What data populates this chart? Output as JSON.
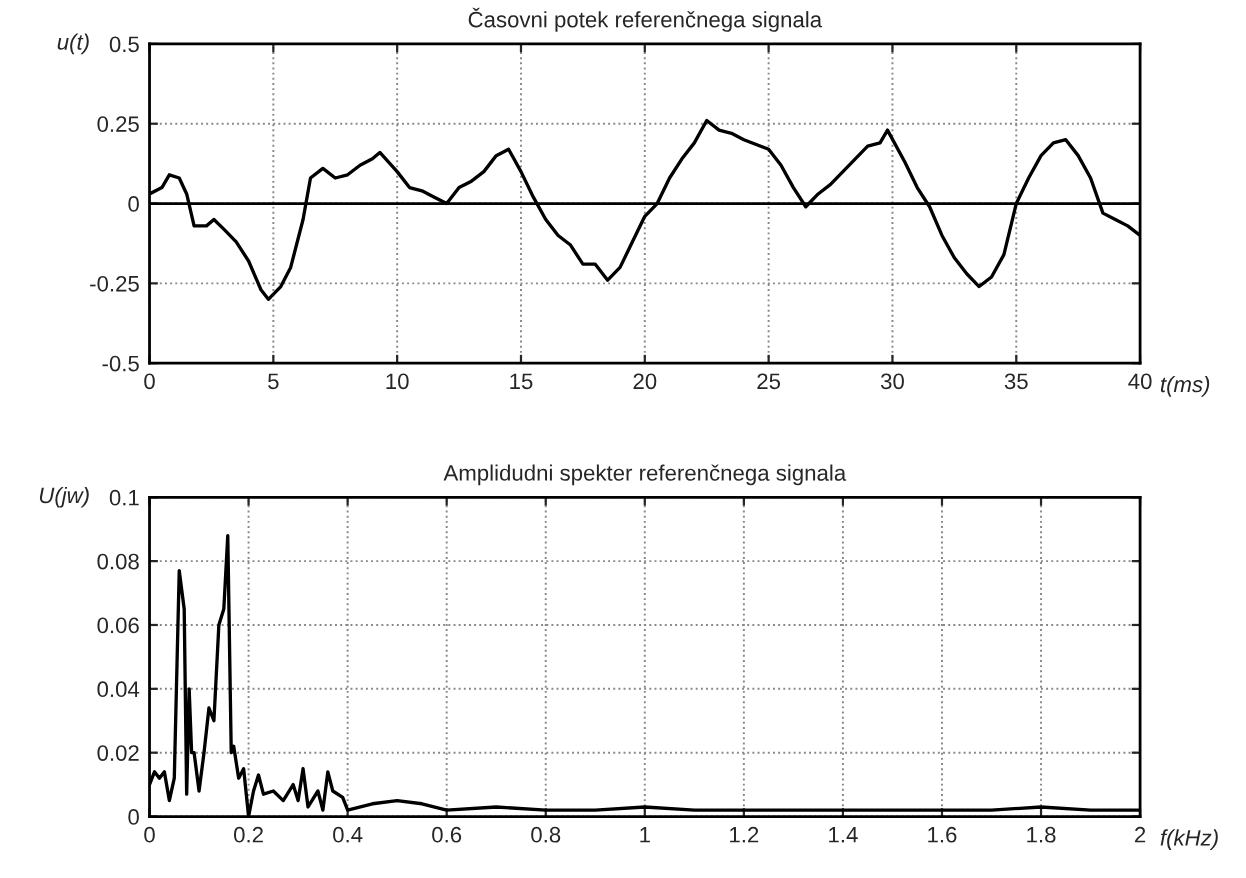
{
  "chart_data": [
    {
      "type": "line",
      "title": "Časovni potek referenčnega signala",
      "ylabel": "u(t)",
      "xlabel": "t(ms)",
      "series": [
        {
          "color": "#000000",
          "x": [
            0,
            0.5,
            0.8,
            1.2,
            1.5,
            1.8,
            2.3,
            2.6,
            3,
            3.5,
            4,
            4.5,
            4.8,
            5.3,
            5.7,
            6.2,
            6.5,
            7,
            7.5,
            8,
            8.5,
            9,
            9.3,
            10,
            10.5,
            11,
            11.5,
            12,
            12.5,
            13,
            13.5,
            14,
            14.5,
            15,
            15.5,
            16,
            16.5,
            17,
            17.5,
            18,
            18.5,
            19,
            19.5,
            20,
            20.5,
            21,
            21.5,
            22,
            22.5,
            23,
            23.5,
            24,
            25,
            25.5,
            26,
            26.5,
            27,
            27.5,
            28,
            28.5,
            29,
            29.5,
            29.8,
            30.5,
            31,
            31.5,
            32,
            32.5,
            33,
            33.5,
            34,
            34.5,
            35,
            35.5,
            36,
            36.5,
            37,
            37.5,
            38,
            38.5,
            39,
            39.5,
            40
          ],
          "values": [
            0.03,
            0.05,
            0.09,
            0.08,
            0.03,
            -0.07,
            -0.07,
            -0.05,
            -0.08,
            -0.12,
            -0.18,
            -0.27,
            -0.3,
            -0.26,
            -0.2,
            -0.05,
            0.08,
            0.11,
            0.08,
            0.09,
            0.12,
            0.14,
            0.16,
            0.1,
            0.05,
            0.04,
            0.02,
            0.0,
            0.05,
            0.07,
            0.1,
            0.15,
            0.17,
            0.1,
            0.02,
            -0.05,
            -0.1,
            -0.13,
            -0.19,
            -0.19,
            -0.24,
            -0.2,
            -0.12,
            -0.04,
            0.0,
            0.08,
            0.14,
            0.19,
            0.26,
            0.23,
            0.22,
            0.2,
            0.17,
            0.12,
            0.05,
            -0.01,
            0.03,
            0.06,
            0.1,
            0.14,
            0.18,
            0.19,
            0.23,
            0.13,
            0.05,
            -0.01,
            -0.1,
            -0.17,
            -0.22,
            -0.26,
            -0.23,
            -0.16,
            0.0,
            0.08,
            0.15,
            0.19,
            0.2,
            0.15,
            0.08,
            -0.03,
            -0.05,
            -0.07,
            -0.1
          ]
        }
      ],
      "xlim": [
        0,
        40
      ],
      "xticks": [
        0,
        5,
        10,
        15,
        20,
        25,
        30,
        35,
        40
      ],
      "ylim": [
        -0.5,
        0.5
      ],
      "yticks": [
        -0.5,
        -0.25,
        0,
        0.25,
        0.5
      ],
      "ref_lines": [
        {
          "axis": "y",
          "value": 0,
          "color": "#000000"
        }
      ],
      "grid": true
    },
    {
      "type": "line",
      "title": "Amplidudni spekter referenčnega signala",
      "ylabel": "U(jw)",
      "xlabel": "f(kHz)",
      "series": [
        {
          "color": "#000000",
          "x": [
            0,
            0.01,
            0.02,
            0.03,
            0.04,
            0.05,
            0.06,
            0.07,
            0.075,
            0.08,
            0.085,
            0.09,
            0.1,
            0.11,
            0.12,
            0.13,
            0.14,
            0.15,
            0.158,
            0.165,
            0.17,
            0.18,
            0.19,
            0.2,
            0.21,
            0.22,
            0.23,
            0.25,
            0.27,
            0.29,
            0.3,
            0.31,
            0.32,
            0.34,
            0.35,
            0.36,
            0.37,
            0.39,
            0.4,
            0.45,
            0.5,
            0.55,
            0.6,
            0.7,
            0.8,
            0.9,
            1.0,
            1.1,
            1.2,
            1.3,
            1.4,
            1.5,
            1.6,
            1.7,
            1.8,
            1.9,
            2.0
          ],
          "values": [
            0.01,
            0.014,
            0.012,
            0.014,
            0.005,
            0.012,
            0.077,
            0.065,
            0.007,
            0.04,
            0.02,
            0.02,
            0.008,
            0.02,
            0.034,
            0.03,
            0.06,
            0.065,
            0.088,
            0.02,
            0.022,
            0.012,
            0.015,
            0.0,
            0.008,
            0.013,
            0.007,
            0.008,
            0.005,
            0.01,
            0.005,
            0.015,
            0.003,
            0.008,
            0.002,
            0.014,
            0.008,
            0.006,
            0.002,
            0.004,
            0.005,
            0.004,
            0.002,
            0.003,
            0.002,
            0.002,
            0.003,
            0.002,
            0.002,
            0.002,
            0.002,
            0.002,
            0.002,
            0.002,
            0.003,
            0.002,
            0.002
          ]
        }
      ],
      "xlim": [
        0,
        2
      ],
      "xticks": [
        0,
        0.2,
        0.4,
        0.6,
        0.8,
        1,
        1.2,
        1.4,
        1.6,
        1.8,
        2
      ],
      "ylim": [
        0,
        0.1
      ],
      "yticks": [
        0,
        0.02,
        0.04,
        0.06,
        0.08,
        0.1
      ],
      "grid": true
    }
  ]
}
